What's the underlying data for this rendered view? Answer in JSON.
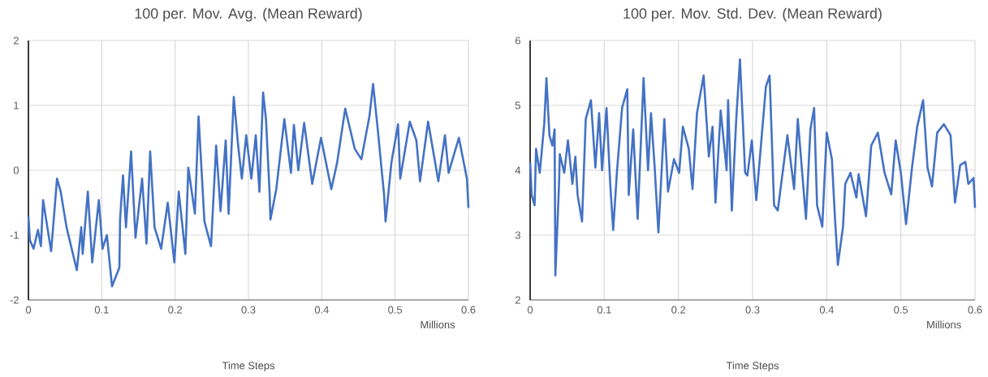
{
  "chart_data": [
    {
      "type": "line",
      "title": "100 per. Mov. Avg. (Mean Reward)",
      "xlabel": "Time Steps",
      "annotations": [
        "Millions"
      ],
      "color": "#4472c4",
      "grid": true,
      "xlim": [
        0,
        0.6
      ],
      "ylim": [
        -2,
        2
      ],
      "xticks": [
        0,
        0.1,
        0.2,
        0.3,
        0.4,
        0.5,
        0.6
      ],
      "yticks": [
        -2,
        -1,
        0,
        1,
        2
      ],
      "x": [
        0,
        0.002,
        0.007,
        0.013,
        0.017,
        0.02,
        0.031,
        0.039,
        0.044,
        0.052,
        0.066,
        0.072,
        0.074,
        0.081,
        0.087,
        0.096,
        0.101,
        0.107,
        0.114,
        0.124,
        0.125,
        0.129,
        0.133,
        0.14,
        0.146,
        0.155,
        0.161,
        0.166,
        0.172,
        0.181,
        0.19,
        0.199,
        0.205,
        0.214,
        0.218,
        0.227,
        0.232,
        0.24,
        0.249,
        0.256,
        0.262,
        0.269,
        0.273,
        0.28,
        0.286,
        0.291,
        0.297,
        0.304,
        0.31,
        0.315,
        0.32,
        0.324,
        0.329,
        0.33,
        0.338,
        0.349,
        0.358,
        0.362,
        0.368,
        0.376,
        0.387,
        0.399,
        0.413,
        0.421,
        0.432,
        0.445,
        0.454,
        0.465,
        0.47,
        0.476,
        0.485,
        0.487,
        0.495,
        0.504,
        0.507,
        0.52,
        0.529,
        0.534,
        0.545,
        0.559,
        0.568,
        0.573,
        0.587,
        0.598,
        0.6
      ],
      "values": [
        -0.71,
        -1.08,
        -1.21,
        -0.92,
        -1.17,
        -0.46,
        -1.25,
        -0.13,
        -0.33,
        -0.88,
        -1.54,
        -0.88,
        -1.29,
        -0.33,
        -1.42,
        -0.46,
        -1.21,
        -1.0,
        -1.79,
        -1.5,
        -0.75,
        -0.08,
        -0.88,
        0.29,
        -1.04,
        -0.13,
        -1.13,
        0.29,
        -0.88,
        -1.21,
        -0.5,
        -1.42,
        -0.33,
        -1.29,
        0.04,
        -0.67,
        0.83,
        -0.79,
        -1.17,
        0.38,
        -0.63,
        0.46,
        -0.67,
        1.13,
        0.38,
        -0.13,
        0.54,
        -0.13,
        0.54,
        -0.33,
        1.2,
        0.78,
        -0.38,
        -0.76,
        -0.29,
        0.79,
        -0.04,
        0.7,
        0.0,
        0.73,
        -0.21,
        0.5,
        -0.29,
        0.12,
        0.95,
        0.33,
        0.17,
        0.83,
        1.33,
        0.67,
        -0.38,
        -0.79,
        0.12,
        0.71,
        -0.13,
        0.75,
        0.46,
        -0.17,
        0.75,
        -0.17,
        0.54,
        -0.04,
        0.5,
        -0.13,
        -0.58
      ]
    },
    {
      "type": "line",
      "title": "100 per. Mov. Std. Dev. (Mean Reward)",
      "xlabel": "Time Steps",
      "annotations": [
        "Millions"
      ],
      "color": "#4472c4",
      "grid": true,
      "xlim": [
        0,
        0.6
      ],
      "ylim": [
        2,
        6
      ],
      "xticks": [
        0,
        0.1,
        0.2,
        0.3,
        0.4,
        0.5,
        0.6
      ],
      "yticks": [
        2,
        3,
        4,
        5,
        6
      ],
      "x": [
        0,
        0.002,
        0.006,
        0.008,
        0.013,
        0.019,
        0.022,
        0.026,
        0.03,
        0.033,
        0.034,
        0.039,
        0.04,
        0.046,
        0.051,
        0.057,
        0.061,
        0.064,
        0.07,
        0.075,
        0.082,
        0.088,
        0.093,
        0.097,
        0.103,
        0.108,
        0.112,
        0.117,
        0.124,
        0.131,
        0.133,
        0.139,
        0.145,
        0.153,
        0.159,
        0.163,
        0.168,
        0.173,
        0.181,
        0.186,
        0.194,
        0.201,
        0.206,
        0.214,
        0.219,
        0.225,
        0.234,
        0.241,
        0.246,
        0.25,
        0.257,
        0.265,
        0.267,
        0.272,
        0.278,
        0.283,
        0.29,
        0.293,
        0.299,
        0.305,
        0.318,
        0.323,
        0.329,
        0.334,
        0.347,
        0.356,
        0.361,
        0.369,
        0.372,
        0.378,
        0.383,
        0.387,
        0.394,
        0.4,
        0.407,
        0.411,
        0.415,
        0.422,
        0.425,
        0.432,
        0.44,
        0.443,
        0.453,
        0.46,
        0.469,
        0.478,
        0.487,
        0.493,
        0.5,
        0.507,
        0.515,
        0.522,
        0.53,
        0.536,
        0.542,
        0.549,
        0.558,
        0.567,
        0.573,
        0.58,
        0.587,
        0.591,
        0.598,
        0.6
      ],
      "values": [
        4.12,
        3.62,
        3.46,
        4.33,
        3.96,
        4.71,
        5.42,
        4.54,
        4.38,
        4.63,
        2.38,
        3.79,
        4.25,
        3.96,
        4.46,
        3.79,
        4.21,
        3.62,
        3.21,
        4.79,
        5.08,
        4.04,
        4.88,
        4.0,
        4.96,
        3.79,
        3.08,
        3.96,
        4.96,
        5.25,
        3.62,
        4.63,
        3.25,
        5.42,
        4.0,
        4.88,
        4.04,
        3.04,
        4.79,
        3.67,
        4.17,
        3.96,
        4.67,
        4.33,
        3.71,
        4.88,
        5.46,
        4.21,
        4.67,
        3.5,
        4.92,
        4.0,
        5.08,
        3.38,
        4.79,
        5.71,
        3.96,
        3.92,
        4.46,
        3.54,
        5.29,
        5.46,
        3.46,
        3.38,
        4.54,
        3.71,
        4.79,
        3.67,
        3.25,
        4.63,
        4.96,
        3.46,
        3.13,
        4.58,
        4.17,
        3.29,
        2.54,
        3.13,
        3.79,
        3.96,
        3.58,
        3.94,
        3.29,
        4.38,
        4.58,
        3.96,
        3.63,
        4.46,
        3.96,
        3.17,
        4.04,
        4.67,
        5.08,
        4.04,
        3.75,
        4.58,
        4.71,
        4.54,
        3.5,
        4.08,
        4.13,
        3.79,
        3.88,
        3.42
      ]
    }
  ]
}
